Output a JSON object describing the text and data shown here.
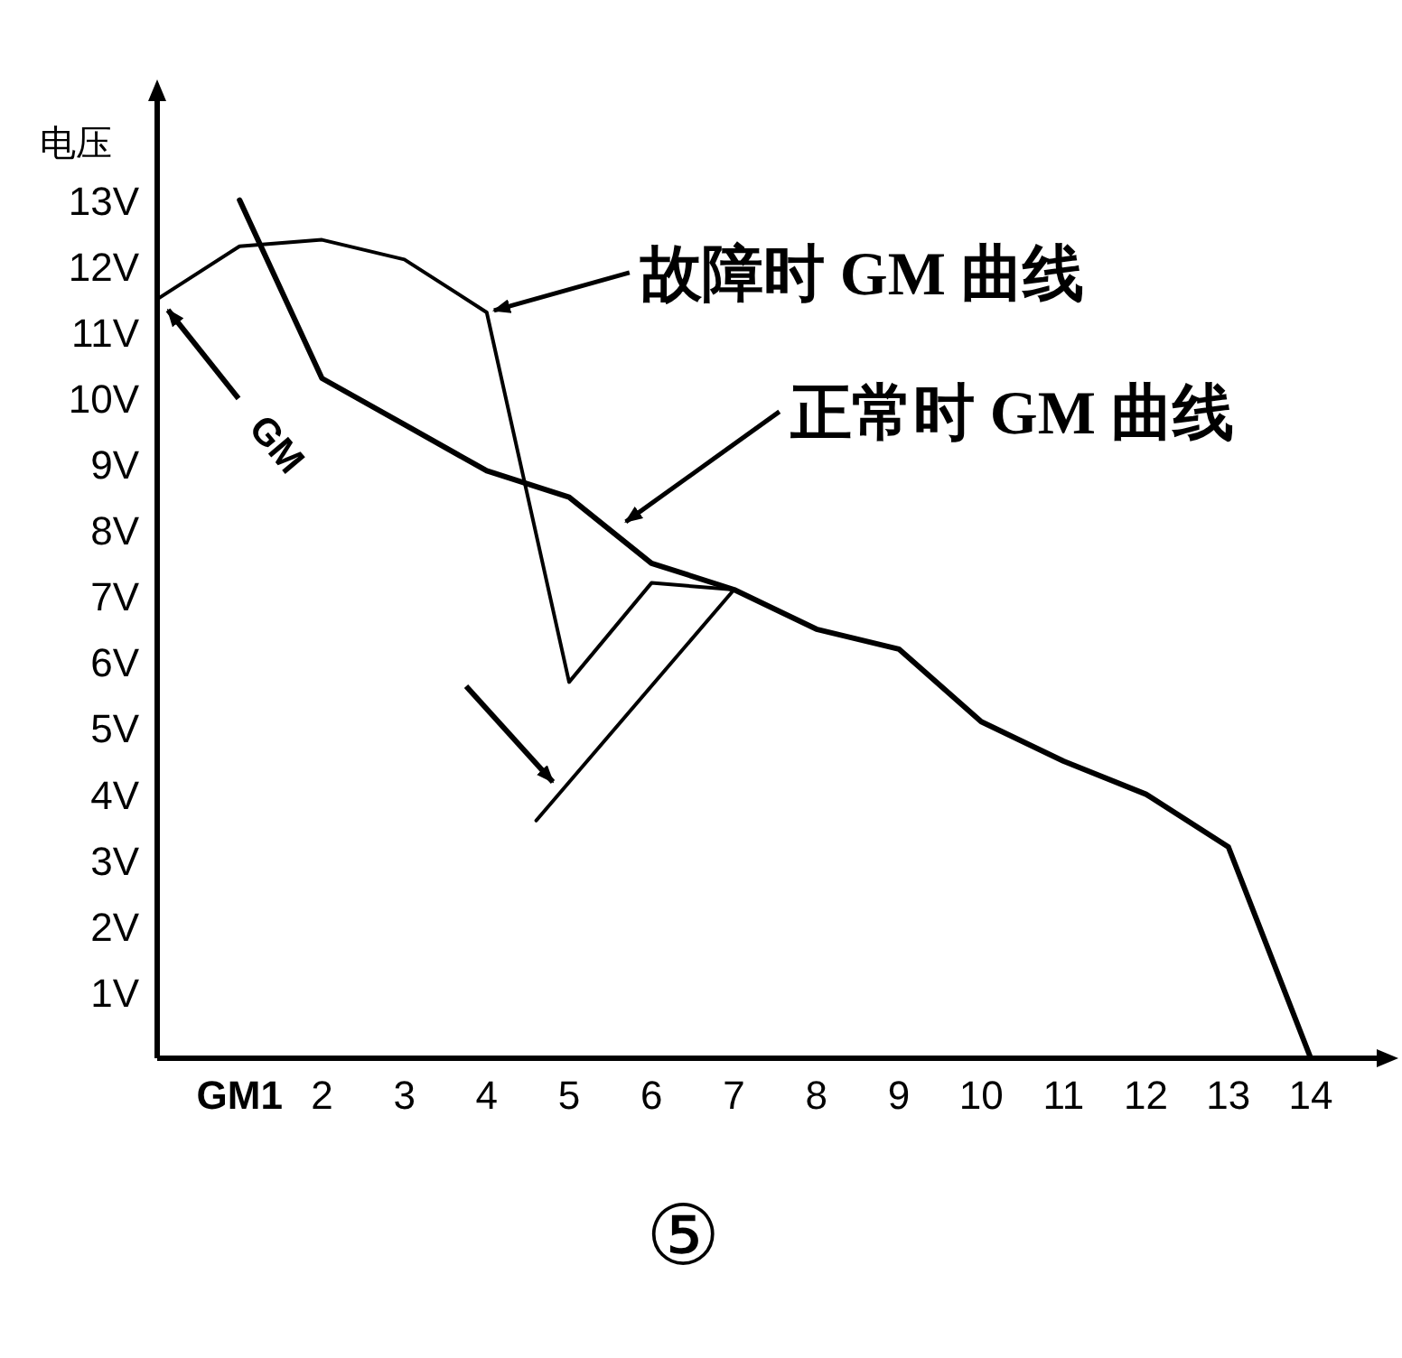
{
  "chart_data": {
    "type": "line",
    "ylabel": "电压",
    "x": [
      1,
      2,
      3,
      4,
      5,
      6,
      7,
      8,
      9,
      10,
      11,
      12,
      13,
      14
    ],
    "series": [
      {
        "color": "#000000",
        "values": [
          13,
          10.3,
          9.6,
          8.9,
          8.5,
          7.5,
          7.1,
          6.5,
          6.2,
          5.1,
          4.5,
          4.0,
          3.2,
          0
        ]
      },
      {
        "color": "#000000",
        "x": [
          0,
          1,
          2,
          3,
          4,
          5,
          6,
          7
        ],
        "values": [
          11.5,
          12.3,
          12.4,
          12.1,
          11.3,
          5.7,
          7.2,
          7.1
        ]
      },
      {
        "color": "#000000",
        "x": [
          4.6,
          7
        ],
        "values": [
          3.6,
          7.1
        ]
      }
    ],
    "xlim": [
      0,
      14.8
    ],
    "ylim": [
      0,
      14.5
    ],
    "xticks": [
      {
        "value": 1,
        "label": "GM1"
      },
      2,
      3,
      4,
      5,
      6,
      7,
      8,
      9,
      10,
      11,
      12,
      13,
      14
    ],
    "yticks": [
      {
        "value": 1,
        "label": "1V"
      },
      {
        "value": 2,
        "label": "2V"
      },
      {
        "value": 3,
        "label": "3V"
      },
      {
        "value": 4,
        "label": "4V"
      },
      {
        "value": 5,
        "label": "5V"
      },
      {
        "value": 6,
        "label": "6V"
      },
      {
        "value": 7,
        "label": "7V"
      },
      {
        "value": 8,
        "label": "8V"
      },
      {
        "value": 9,
        "label": "9V"
      },
      {
        "value": 10,
        "label": "10V"
      },
      {
        "value": 11,
        "label": "11V"
      },
      {
        "value": 12,
        "label": "12V"
      },
      {
        "value": 13,
        "label": "13V"
      }
    ],
    "annotations": [
      {
        "text": "故障时 GM 曲线",
        "x": 4,
        "y": 11.3
      },
      {
        "text": "正常时 GM 曲线",
        "x": 5.6,
        "y": 8.1
      },
      {
        "text": "GM",
        "x": 0,
        "y": 11.5
      },
      "⑤"
    ],
    "grid": false,
    "marker": "none",
    "line_style": "solid"
  }
}
